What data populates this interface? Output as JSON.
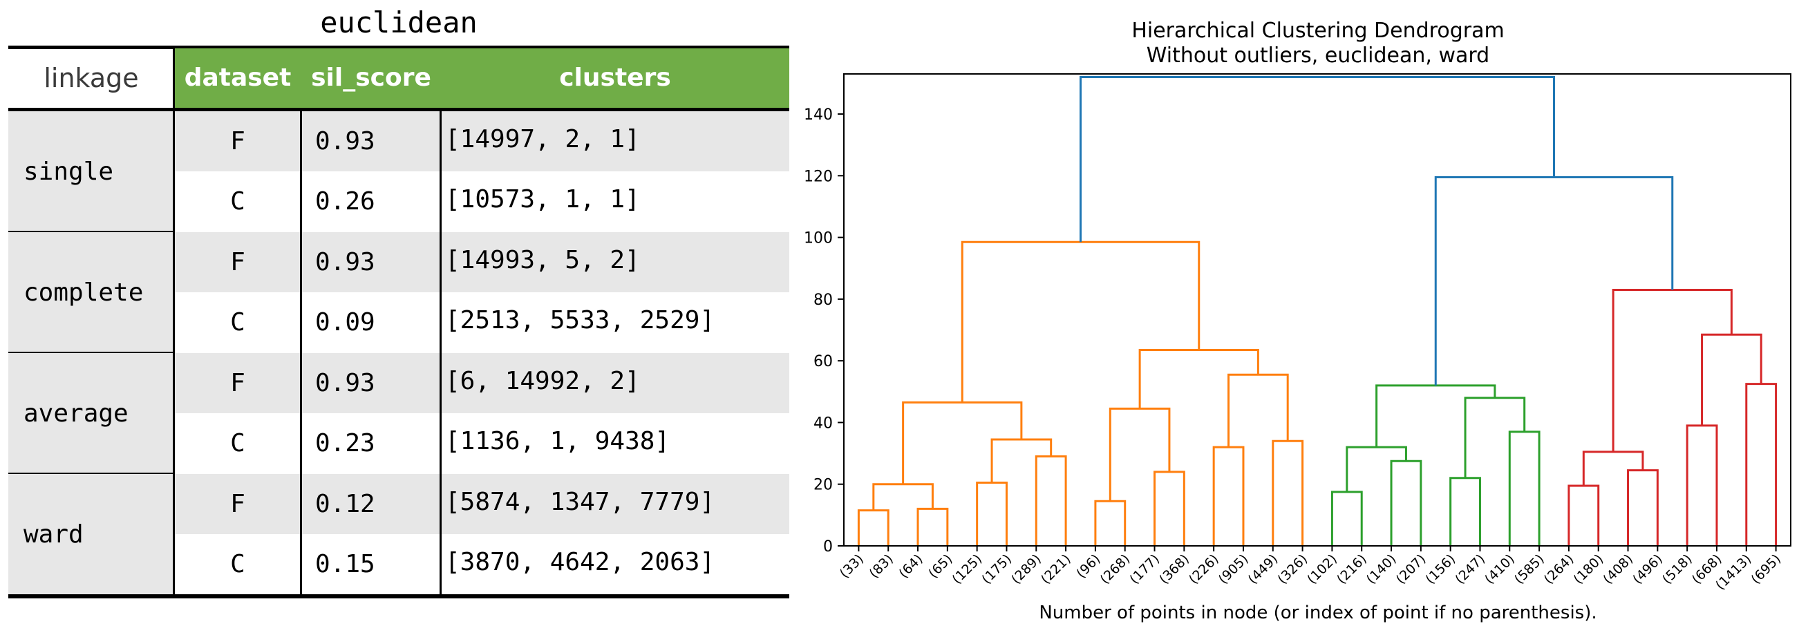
{
  "table": {
    "title": "euclidean",
    "headers": {
      "linkage": "linkage",
      "dataset": "dataset",
      "sil_score": "sil_score",
      "clusters": "clusters"
    },
    "groups": [
      {
        "linkage": "single",
        "rows": [
          {
            "dataset": "F",
            "sil_score": "0.93",
            "clusters": "[14997, 2, 1]"
          },
          {
            "dataset": "C",
            "sil_score": "0.26",
            "clusters": "[10573, 1, 1]"
          }
        ]
      },
      {
        "linkage": "complete",
        "rows": [
          {
            "dataset": "F",
            "sil_score": "0.93",
            "clusters": "[14993, 5, 2]"
          },
          {
            "dataset": "C",
            "sil_score": "0.09",
            "clusters": "[2513, 5533, 2529]"
          }
        ]
      },
      {
        "linkage": "average",
        "rows": [
          {
            "dataset": "F",
            "sil_score": "0.93",
            "clusters": "[6, 14992, 2]"
          },
          {
            "dataset": "C",
            "sil_score": "0.23",
            "clusters": "[1136, 1, 9438]"
          }
        ]
      },
      {
        "linkage": "ward",
        "rows": [
          {
            "dataset": "F",
            "sil_score": "0.12",
            "clusters": "[5874, 1347, 7779]"
          },
          {
            "dataset": "C",
            "sil_score": "0.15",
            "clusters": "[3870, 4642, 2063]"
          }
        ]
      }
    ],
    "header_color": "#70ad47",
    "band_color": "#e7e7e7"
  },
  "chart_data": {
    "type": "dendrogram",
    "title": "Hierarchical Clustering Dendrogram",
    "subtitle": "Without outliers, euclidean, ward",
    "xlabel": "Number of points in node (or index of point if no parenthesis).",
    "ylabel": "",
    "ylim": [
      0,
      153
    ],
    "yticks": [
      0,
      20,
      40,
      60,
      80,
      100,
      120,
      140
    ],
    "grid": false,
    "leaves": [
      "(33)",
      "(83)",
      "(64)",
      "(65)",
      "(125)",
      "(175)",
      "(289)",
      "(221)",
      "(96)",
      "(268)",
      "(177)",
      "(368)",
      "(226)",
      "(905)",
      "(449)",
      "(326)",
      "(102)",
      "(216)",
      "(140)",
      "(207)",
      "(156)",
      "(247)",
      "(410)",
      "(585)",
      "(264)",
      "(180)",
      "(408)",
      "(496)",
      "(518)",
      "(668)",
      "(1413)",
      "(695)"
    ],
    "merges": [
      {
        "id": "a1",
        "left": 0,
        "right": 1,
        "height": 11.5,
        "color": "#ff7f0e"
      },
      {
        "id": "a2",
        "left": 2,
        "right": 3,
        "height": 12,
        "color": "#ff7f0e"
      },
      {
        "id": "a3",
        "left": "a1",
        "right": "a2",
        "height": 20,
        "color": "#ff7f0e"
      },
      {
        "id": "a4",
        "left": 4,
        "right": 5,
        "height": 20.5,
        "color": "#ff7f0e"
      },
      {
        "id": "a5",
        "left": 6,
        "right": 7,
        "height": 29,
        "color": "#ff7f0e"
      },
      {
        "id": "a6",
        "left": "a4",
        "right": "a5",
        "height": 34.5,
        "color": "#ff7f0e"
      },
      {
        "id": "a7",
        "left": "a3",
        "right": "a6",
        "height": 46.5,
        "color": "#ff7f0e"
      },
      {
        "id": "a8",
        "left": 8,
        "right": 9,
        "height": 14.5,
        "color": "#ff7f0e"
      },
      {
        "id": "a9",
        "left": 10,
        "right": 11,
        "height": 24,
        "color": "#ff7f0e"
      },
      {
        "id": "a10",
        "left": "a8",
        "right": "a9",
        "height": 44.5,
        "color": "#ff7f0e"
      },
      {
        "id": "a11",
        "left": 12,
        "right": 13,
        "height": 32,
        "color": "#ff7f0e"
      },
      {
        "id": "a12",
        "left": 14,
        "right": 15,
        "height": 34,
        "color": "#ff7f0e"
      },
      {
        "id": "a13",
        "left": "a11",
        "right": "a12",
        "height": 55.5,
        "color": "#ff7f0e"
      },
      {
        "id": "a14",
        "left": "a10",
        "right": "a13",
        "height": 63.5,
        "color": "#ff7f0e"
      },
      {
        "id": "a15",
        "left": "a7",
        "right": "a14",
        "height": 98.5,
        "color": "#ff7f0e"
      },
      {
        "id": "g1",
        "left": 16,
        "right": 17,
        "height": 17.5,
        "color": "#2ca02c"
      },
      {
        "id": "g2",
        "left": 18,
        "right": 19,
        "height": 27.5,
        "color": "#2ca02c"
      },
      {
        "id": "g3",
        "left": "g1",
        "right": "g2",
        "height": 32,
        "color": "#2ca02c"
      },
      {
        "id": "g4",
        "left": 20,
        "right": 21,
        "height": 22,
        "color": "#2ca02c"
      },
      {
        "id": "g5",
        "left": 22,
        "right": 23,
        "height": 37,
        "color": "#2ca02c"
      },
      {
        "id": "g6",
        "left": "g4",
        "right": "g5",
        "height": 48,
        "color": "#2ca02c"
      },
      {
        "id": "g7",
        "left": "g3",
        "right": "g6",
        "height": 52,
        "color": "#2ca02c"
      },
      {
        "id": "r1",
        "left": 24,
        "right": 25,
        "height": 19.5,
        "color": "#d62728"
      },
      {
        "id": "r2",
        "left": 26,
        "right": 27,
        "height": 24.5,
        "color": "#d62728"
      },
      {
        "id": "r3",
        "left": "r1",
        "right": "r2",
        "height": 30.5,
        "color": "#d62728"
      },
      {
        "id": "r4",
        "left": 28,
        "right": 29,
        "height": 39,
        "color": "#d62728"
      },
      {
        "id": "r5",
        "left": 30,
        "right": 31,
        "height": 52.5,
        "color": "#d62728"
      },
      {
        "id": "r6",
        "left": "r4",
        "right": "r5",
        "height": 68.5,
        "color": "#d62728"
      },
      {
        "id": "r7",
        "left": "r3",
        "right": "r6",
        "height": 83,
        "color": "#d62728"
      },
      {
        "id": "b1",
        "left": "g7",
        "right": "r7",
        "height": 119.5,
        "color": "#1f77b4"
      },
      {
        "id": "b2",
        "left": "a15",
        "right": "b1",
        "height": 152,
        "color": "#1f77b4"
      }
    ]
  }
}
